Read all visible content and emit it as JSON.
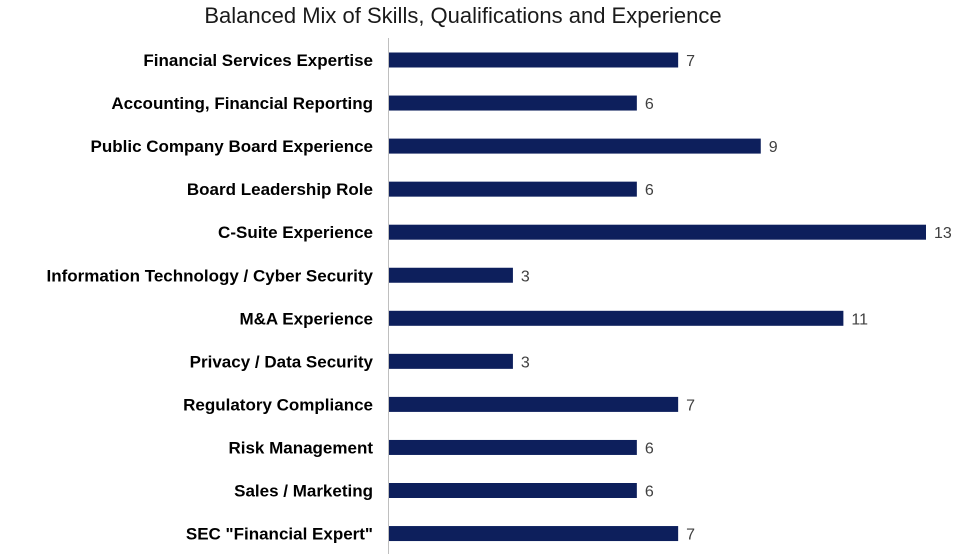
{
  "chart_data": {
    "type": "bar",
    "orientation": "horizontal",
    "title": "Balanced Mix of Skills, Qualifications and Experience",
    "xlabel": "",
    "ylabel": "",
    "categories": [
      "Financial Services Expertise",
      "Accounting, Financial Reporting",
      "Public Company Board Experience",
      "Board Leadership Role",
      "C-Suite Experience",
      "Information Technology / Cyber Security",
      "M&A Experience",
      "Privacy / Data Security",
      "Regulatory Compliance",
      "Risk Management",
      "Sales / Marketing",
      "SEC \"Financial Expert\""
    ],
    "values": [
      7,
      6,
      9,
      6,
      13,
      3,
      11,
      3,
      7,
      6,
      6,
      7
    ],
    "xlim": [
      0,
      13
    ],
    "grid": false,
    "legend": "none",
    "data_labels": true,
    "bar_color": "#0d1f5c",
    "axis_color": "#bfbfbf"
  }
}
